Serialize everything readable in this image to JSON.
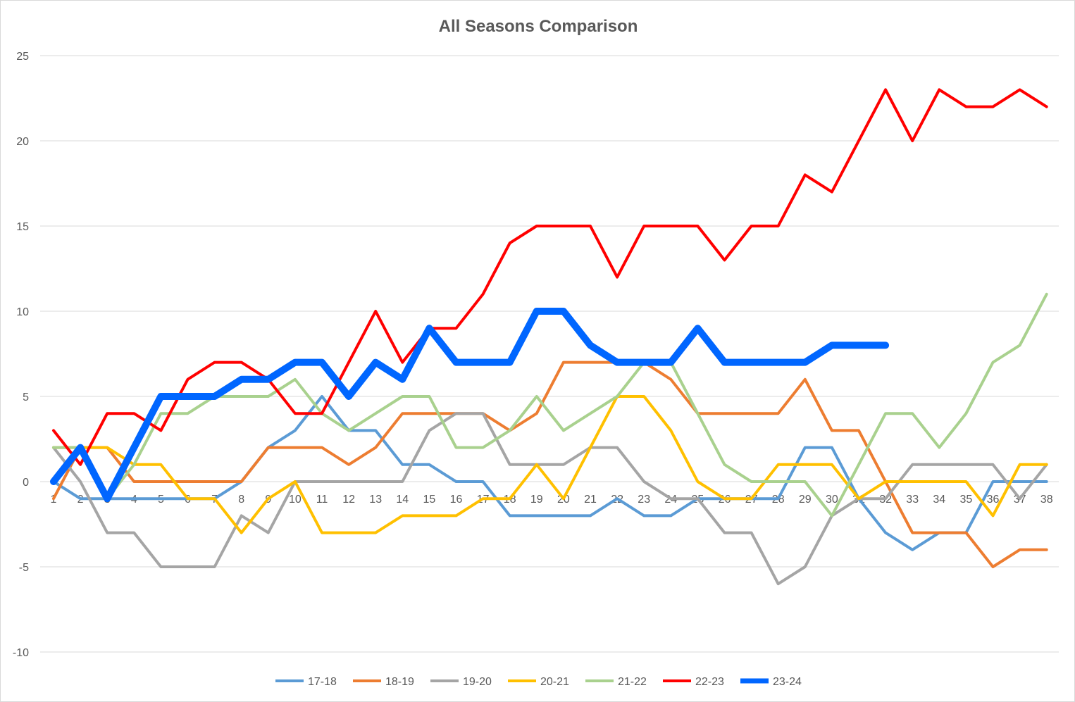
{
  "chart_data": {
    "type": "line",
    "title": "All Seasons Comparison",
    "xlabel": "",
    "ylabel": "",
    "ylim": [
      -10,
      25
    ],
    "yticks": [
      25,
      20,
      15,
      10,
      5,
      0,
      -5,
      -10
    ],
    "grid": true,
    "legend": "bottom",
    "x": [
      1,
      2,
      3,
      4,
      5,
      6,
      7,
      8,
      9,
      10,
      11,
      12,
      13,
      14,
      15,
      16,
      17,
      18,
      19,
      20,
      21,
      22,
      23,
      24,
      25,
      26,
      27,
      28,
      29,
      30,
      31,
      32,
      33,
      34,
      35,
      36,
      37,
      38
    ],
    "x_tick_labels": [
      "1",
      "2",
      "3",
      "4",
      "5",
      "6",
      "7",
      "8",
      "9",
      "10",
      "11",
      "12",
      "13",
      "14",
      "15",
      "16",
      "17",
      "18",
      "19",
      "20",
      "21",
      "22",
      "23",
      "24",
      "25",
      "26",
      "27",
      "28",
      "29",
      "30",
      "31",
      "32",
      "33",
      "34",
      "35",
      "36",
      "37",
      "38"
    ],
    "series": [
      {
        "name": "17-18",
        "color": "#5b9bd5",
        "values": [
          0,
          -1,
          -1,
          -1,
          -1,
          -1,
          -1,
          0,
          2,
          3,
          5,
          3,
          3,
          1,
          1,
          0,
          0,
          -2,
          -2,
          -2,
          -2,
          -1,
          -2,
          -2,
          -1,
          -1,
          -1,
          -1,
          2,
          2,
          -1,
          -3,
          -4,
          -3,
          -3,
          0,
          0,
          0
        ]
      },
      {
        "name": "18-19",
        "color": "#ed7d31",
        "values": [
          -1,
          2,
          2,
          0,
          0,
          0,
          0,
          0,
          2,
          2,
          2,
          1,
          2,
          4,
          4,
          4,
          4,
          3,
          4,
          7,
          7,
          7,
          7,
          6,
          4,
          4,
          4,
          4,
          6,
          3,
          3,
          0,
          -3,
          -3,
          -3,
          -5,
          -4,
          -4
        ]
      },
      {
        "name": "19-20",
        "color": "#a5a5a5",
        "values": [
          2,
          0,
          -3,
          -3,
          -5,
          -5,
          -5,
          -2,
          -3,
          0,
          0,
          0,
          0,
          0,
          3,
          4,
          4,
          1,
          1,
          1,
          2,
          2,
          0,
          -1,
          -1,
          -3,
          -3,
          -6,
          -5,
          -2,
          -1,
          -1,
          1,
          1,
          1,
          1,
          -1,
          1
        ]
      },
      {
        "name": "20-21",
        "color": "#ffc000",
        "values": [
          2,
          2,
          2,
          1,
          1,
          -1,
          -1,
          -3,
          -1,
          0,
          -3,
          -3,
          -3,
          -2,
          -2,
          -2,
          -1,
          -1,
          1,
          -1,
          2,
          5,
          5,
          3,
          0,
          -1,
          -1,
          1,
          1,
          1,
          -1,
          0,
          0,
          0,
          0,
          -2,
          1,
          1
        ]
      },
      {
        "name": "21-22",
        "color": "#a9d18e",
        "values": [
          2,
          2,
          -1,
          1,
          4,
          4,
          5,
          5,
          5,
          6,
          4,
          3,
          4,
          5,
          5,
          2,
          2,
          3,
          5,
          3,
          4,
          5,
          7,
          7,
          4,
          1,
          0,
          0,
          0,
          -2,
          1,
          4,
          4,
          2,
          4,
          7,
          8,
          11
        ]
      },
      {
        "name": "22-23",
        "color": "#ff0000",
        "values": [
          3,
          1,
          4,
          4,
          3,
          6,
          7,
          7,
          6,
          4,
          4,
          7,
          10,
          7,
          9,
          9,
          11,
          14,
          15,
          15,
          15,
          12,
          15,
          15,
          15,
          13,
          15,
          15,
          18,
          17,
          20,
          23,
          20,
          23,
          22,
          22,
          23,
          22
        ]
      },
      {
        "name": "23-24",
        "color": "#0066ff",
        "values": [
          0,
          2,
          -1,
          2,
          5,
          5,
          5,
          6,
          6,
          7,
          7,
          5,
          7,
          6,
          9,
          7,
          7,
          7,
          10,
          10,
          8,
          7,
          7,
          7,
          9,
          7,
          7,
          7,
          7,
          8,
          8,
          8,
          null,
          null,
          null,
          null,
          null,
          null
        ]
      }
    ]
  }
}
